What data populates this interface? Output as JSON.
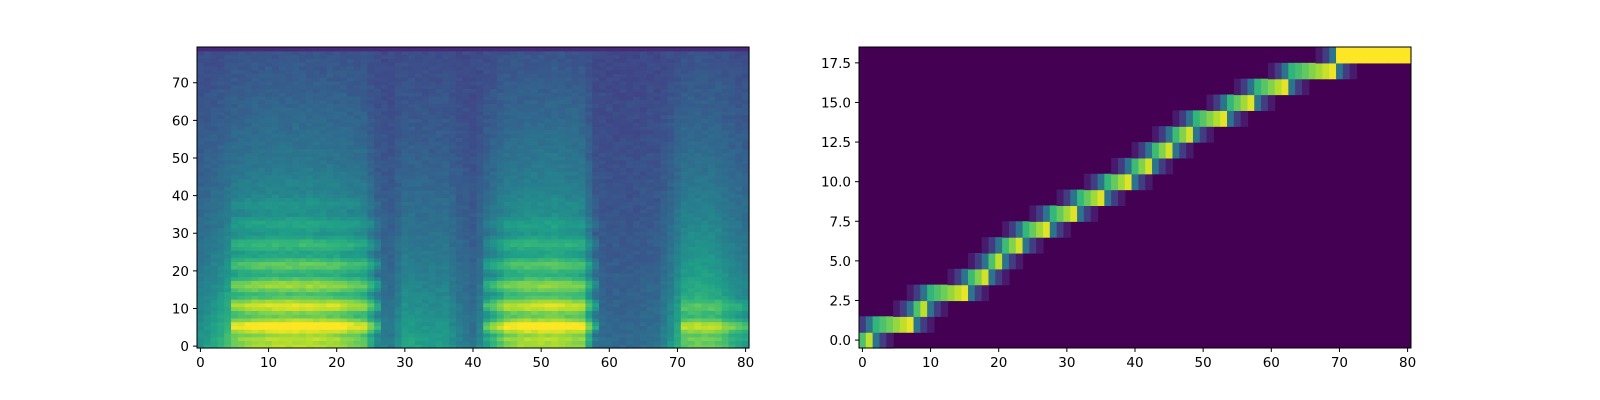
{
  "chart_data": [
    {
      "type": "heatmap",
      "title": "",
      "xlabel": "",
      "ylabel": "",
      "xlim": [
        -0.5,
        80.5
      ],
      "ylim": [
        -0.5,
        79.5
      ],
      "x_ticks": [
        0,
        10,
        20,
        30,
        40,
        50,
        60,
        70,
        80
      ],
      "y_ticks": [
        0,
        10,
        20,
        30,
        40,
        50,
        60,
        70
      ],
      "x_tick_labels": [
        "0",
        "10",
        "20",
        "30",
        "40",
        "50",
        "60",
        "70",
        "80"
      ],
      "y_tick_labels": [
        "0",
        "10",
        "20",
        "30",
        "40",
        "50",
        "60",
        "70"
      ],
      "grid": false,
      "colormap": "viridis",
      "n_cols": 81,
      "n_rows": 80,
      "column_energy": {
        "x": [
          0,
          3,
          5,
          8,
          12,
          16,
          20,
          24,
          26,
          28,
          30,
          33,
          36,
          38,
          40,
          42,
          45,
          48,
          52,
          56,
          58,
          60,
          64,
          67,
          69,
          71,
          73,
          76,
          78,
          80
        ],
        "value": [
          0.45,
          0.62,
          0.8,
          0.9,
          0.95,
          0.95,
          0.9,
          0.75,
          0.35,
          0.3,
          0.55,
          0.5,
          0.5,
          0.35,
          0.25,
          0.5,
          0.85,
          0.92,
          0.95,
          0.85,
          0.25,
          0.2,
          0.2,
          0.25,
          0.45,
          0.75,
          0.8,
          0.75,
          0.6,
          0.5
        ]
      },
      "harmonic_bands": [
        {
          "x_range": [
            5,
            26
          ],
          "y_range": [
            2,
            45
          ]
        },
        {
          "x_range": [
            42,
            58
          ],
          "y_range": [
            2,
            40
          ]
        },
        {
          "x_range": [
            71,
            80
          ],
          "y_range": [
            2,
            15
          ]
        }
      ]
    },
    {
      "type": "heatmap",
      "title": "",
      "xlabel": "",
      "ylabel": "",
      "xlim": [
        -0.5,
        80.5
      ],
      "ylim": [
        -0.5,
        18.5
      ],
      "x_ticks": [
        0,
        10,
        20,
        30,
        40,
        50,
        60,
        70,
        80
      ],
      "y_ticks": [
        0,
        2.5,
        5,
        7.5,
        10,
        12.5,
        15,
        17.5
      ],
      "x_tick_labels": [
        "0",
        "10",
        "20",
        "30",
        "40",
        "50",
        "60",
        "70",
        "80"
      ],
      "y_tick_labels": [
        "0.0",
        "2.5",
        "5.0",
        "7.5",
        "10.0",
        "12.5",
        "15.0",
        "17.5"
      ],
      "grid": false,
      "colormap": "viridis",
      "n_cols": 81,
      "n_rows": 19,
      "alignment_path": [
        {
          "row": 0,
          "x_start": 0,
          "x_end": 1
        },
        {
          "row": 1,
          "x_start": 2,
          "x_end": 7
        },
        {
          "row": 2,
          "x_start": 8,
          "x_end": 9
        },
        {
          "row": 3,
          "x_start": 10,
          "x_end": 15
        },
        {
          "row": 4,
          "x_start": 16,
          "x_end": 18
        },
        {
          "row": 5,
          "x_start": 19,
          "x_end": 20
        },
        {
          "row": 6,
          "x_start": 21,
          "x_end": 23
        },
        {
          "row": 7,
          "x_start": 24,
          "x_end": 27
        },
        {
          "row": 8,
          "x_start": 28,
          "x_end": 31
        },
        {
          "row": 9,
          "x_start": 32,
          "x_end": 35
        },
        {
          "row": 10,
          "x_start": 36,
          "x_end": 39
        },
        {
          "row": 11,
          "x_start": 40,
          "x_end": 42
        },
        {
          "row": 12,
          "x_start": 43,
          "x_end": 45
        },
        {
          "row": 13,
          "x_start": 46,
          "x_end": 48
        },
        {
          "row": 14,
          "x_start": 49,
          "x_end": 53
        },
        {
          "row": 15,
          "x_start": 54,
          "x_end": 57
        },
        {
          "row": 16,
          "x_start": 58,
          "x_end": 62
        },
        {
          "row": 17,
          "x_start": 63,
          "x_end": 69
        },
        {
          "row": 18,
          "x_start": 70,
          "x_end": 80
        }
      ]
    }
  ]
}
